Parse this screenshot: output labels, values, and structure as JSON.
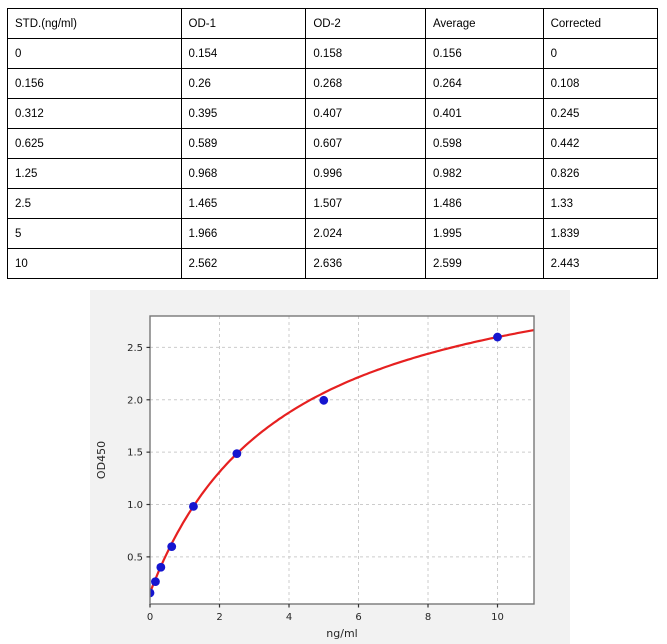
{
  "table": {
    "columns": [
      "STD.(ng/ml)",
      "OD-1",
      "OD-2",
      "Average",
      "Corrected"
    ],
    "rows": [
      [
        "0",
        "0.154",
        "0.158",
        "0.156",
        "0"
      ],
      [
        "0.156",
        "0.26",
        "0.268",
        "0.264",
        "0.108"
      ],
      [
        "0.312",
        "0.395",
        "0.407",
        "0.401",
        "0.245"
      ],
      [
        "0.625",
        "0.589",
        "0.607",
        "0.598",
        "0.442"
      ],
      [
        "1.25",
        "0.968",
        "0.996",
        "0.982",
        "0.826"
      ],
      [
        "2.5",
        "1.465",
        "1.507",
        "1.486",
        "1.33"
      ],
      [
        "5",
        "1.966",
        "2.024",
        "1.995",
        "1.839"
      ],
      [
        "10",
        "2.562",
        "2.636",
        "2.599",
        "2.443"
      ]
    ]
  },
  "chart_data": {
    "type": "scatter",
    "title": "",
    "xlabel": "ng/ml",
    "ylabel": "OD450",
    "x": [
      0,
      0.156,
      0.312,
      0.625,
      1.25,
      2.5,
      5,
      10
    ],
    "y": [
      0.156,
      0.264,
      0.401,
      0.598,
      0.982,
      1.486,
      1.995,
      2.599
    ],
    "xlim": [
      0,
      11.05
    ],
    "ylim": [
      0.05,
      2.8
    ],
    "xticks": [
      0,
      2,
      4,
      6,
      8,
      10
    ],
    "xtick_labels": [
      "0",
      "2",
      "4",
      "6",
      "8",
      "10"
    ],
    "yticks": [
      0.5,
      1.0,
      1.5,
      2.0,
      2.5
    ],
    "ytick_labels": [
      "0.5",
      "1.0",
      "1.5",
      "2.0",
      "2.5"
    ],
    "grid": "dashed",
    "legend": "none",
    "fit_curve": {
      "type": "saturation",
      "y0": 0.156,
      "vmax": 3.388,
      "km": 3.87
    },
    "colors": {
      "figure_bg": "#f2f2f2",
      "plot_bg": "#ffffff",
      "grid": "#cccccc",
      "spine": "#777777",
      "tick": "#333333",
      "point": "#1515cf",
      "curve": "#e62020",
      "text": "#262626"
    }
  }
}
